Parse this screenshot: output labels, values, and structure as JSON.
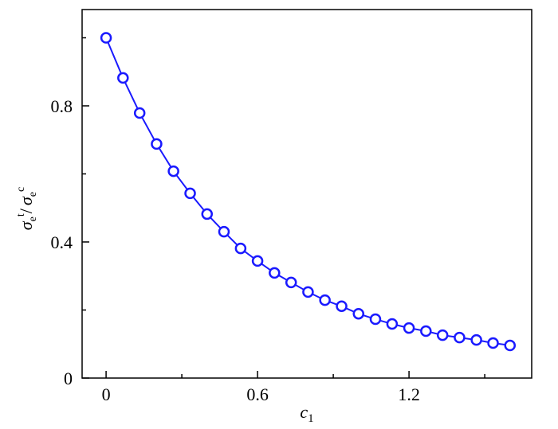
{
  "chart_data": {
    "type": "line",
    "xlabel": {
      "symbol": "c",
      "sub": "1"
    },
    "ylabel": {
      "symbol": "σ",
      "sub": "e",
      "sup_num": "t",
      "sep": "/",
      "sup_den": "c"
    },
    "x": [
      0,
      0.067,
      0.133,
      0.2,
      0.267,
      0.333,
      0.4,
      0.467,
      0.533,
      0.6,
      0.667,
      0.733,
      0.8,
      0.867,
      0.933,
      1.0,
      1.067,
      1.133,
      1.2,
      1.267,
      1.333,
      1.4,
      1.467,
      1.533,
      1.6
    ],
    "series": [
      {
        "color": "#1a1aff",
        "values": [
          1.0,
          0.882,
          0.779,
          0.688,
          0.608,
          0.543,
          0.482,
          0.43,
          0.381,
          0.344,
          0.309,
          0.281,
          0.253,
          0.229,
          0.211,
          0.189,
          0.173,
          0.159,
          0.147,
          0.138,
          0.126,
          0.119,
          0.112,
          0.103,
          0.096
        ]
      }
    ],
    "xlim": [
      -0.095,
      1.686
    ],
    "ylim": [
      0,
      1.083
    ],
    "xticks": [
      0,
      0.6,
      1.2
    ],
    "yticks": [
      0,
      0.4,
      0.8
    ],
    "xminor_ticks": [
      0.3,
      0.9,
      1.5
    ],
    "yminor_ticks": [
      0.2,
      0.6,
      1.0
    ]
  }
}
